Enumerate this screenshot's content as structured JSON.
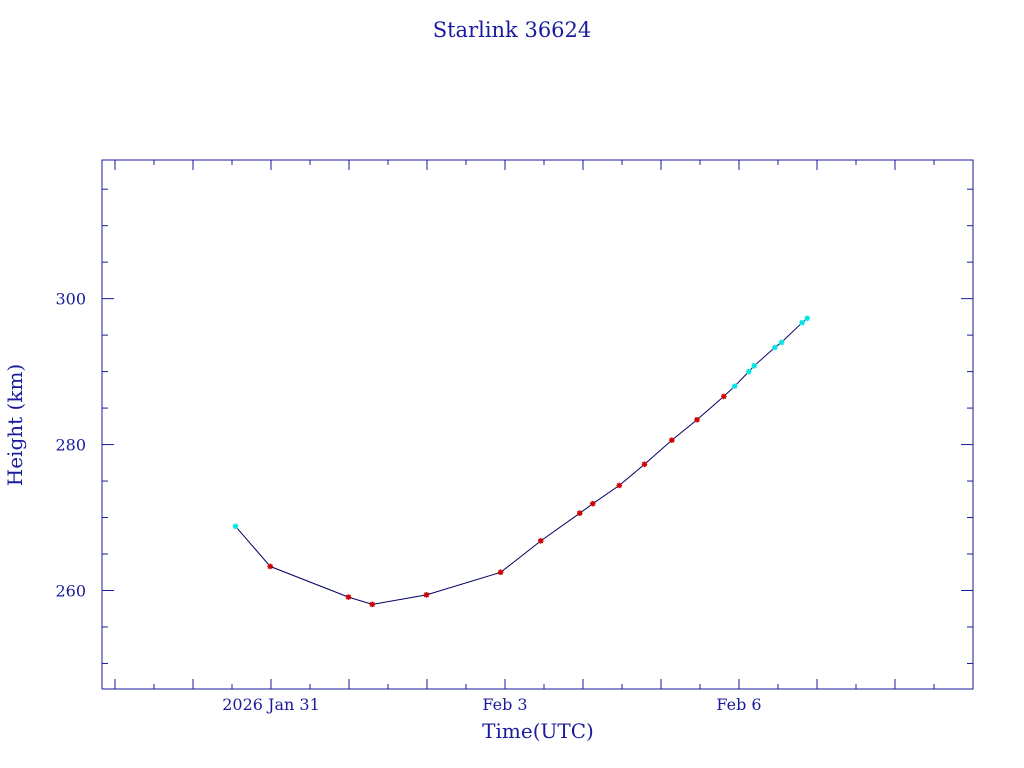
{
  "chart_data": {
    "type": "line",
    "title": "Starlink 36624",
    "xlabel": "Time(UTC)",
    "ylabel": "Height (km)",
    "x_tick_labels": [
      {
        "date": "2026-01-31",
        "label": "2026 Jan 31"
      },
      {
        "date": "2026-02-03",
        "label": "Feb  3"
      },
      {
        "date": "2026-02-06",
        "label": "Feb  6"
      }
    ],
    "y_tick_labels": [
      260,
      280,
      300
    ],
    "xlim": [
      "2026-01-28T20:00",
      "2026-02-09T00:00"
    ],
    "ylim": [
      246.5,
      319
    ],
    "grid": false,
    "series": [
      {
        "points": [
          {
            "x": "2026-01-30T13:05",
            "y": 268.8,
            "quality": "cyan"
          },
          {
            "x": "2026-01-30T23:45",
            "y": 263.3,
            "quality": "red"
          },
          {
            "x": "2026-01-31T23:50",
            "y": 259.1,
            "quality": "red"
          },
          {
            "x": "2026-02-01T07:10",
            "y": 258.1,
            "quality": "red"
          },
          {
            "x": "2026-02-01T23:50",
            "y": 259.4,
            "quality": "red"
          },
          {
            "x": "2026-02-02T22:40",
            "y": 262.5,
            "quality": "red"
          },
          {
            "x": "2026-02-03T11:00",
            "y": 266.8,
            "quality": "red"
          },
          {
            "x": "2026-02-03T23:00",
            "y": 270.6,
            "quality": "red"
          },
          {
            "x": "2026-02-04T03:00",
            "y": 271.9,
            "quality": "red"
          },
          {
            "x": "2026-02-04T11:10",
            "y": 274.4,
            "quality": "red"
          },
          {
            "x": "2026-02-04T18:55",
            "y": 277.3,
            "quality": "red"
          },
          {
            "x": "2026-02-05T03:20",
            "y": 280.6,
            "quality": "red"
          },
          {
            "x": "2026-02-05T11:05",
            "y": 283.4,
            "quality": "red"
          },
          {
            "x": "2026-02-05T19:20",
            "y": 286.6,
            "quality": "red"
          },
          {
            "x": "2026-02-05T22:40",
            "y": 288.0,
            "quality": "cyan"
          },
          {
            "x": "2026-02-06T03:00",
            "y": 290.0,
            "quality": "cyan"
          },
          {
            "x": "2026-02-06T04:40",
            "y": 290.8,
            "quality": "cyan"
          },
          {
            "x": "2026-02-06T11:00",
            "y": 293.3,
            "quality": "cyan"
          },
          {
            "x": "2026-02-06T13:05",
            "y": 294.0,
            "quality": "cyan"
          },
          {
            "x": "2026-02-06T19:25",
            "y": 296.7,
            "quality": "cyan"
          },
          {
            "x": "2026-02-06T21:00",
            "y": 297.3,
            "quality": "cyan"
          }
        ]
      }
    ],
    "colors": {
      "axis": "#1a1a9c",
      "line": "#000066",
      "red_marker": "#cc0000",
      "cyan_marker": "#00e5e5"
    }
  }
}
